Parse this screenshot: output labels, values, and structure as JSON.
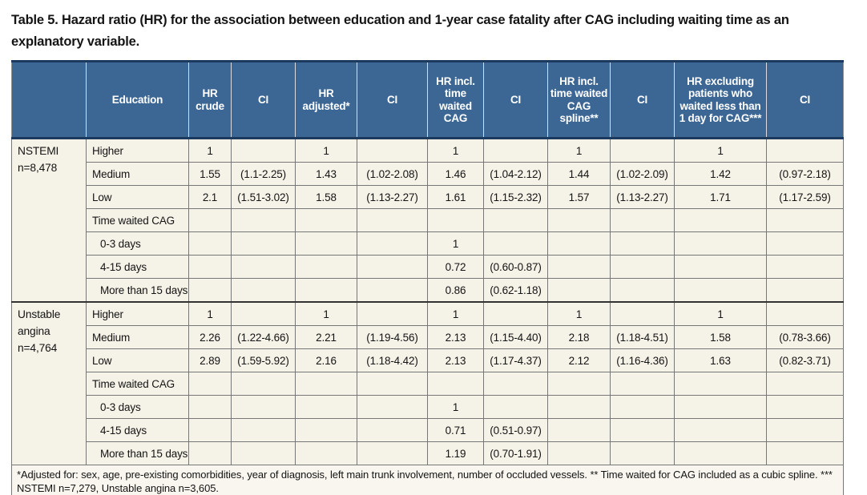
{
  "title": {
    "line1": "Table 5. Hazard ratio (HR) for the association between education and 1-year case fatality after CAG including waiting time as an",
    "line2": "explanatory variable."
  },
  "colors": {
    "header_bg": "#3c6795",
    "header_text": "#ffffff",
    "body_bg": "#f5f2e7",
    "top_border_navy": "#1b3a5e",
    "grid_gray": "#777777"
  },
  "table": {
    "columns": [
      "",
      "Education",
      "HR crude",
      "CI",
      "HR adjusted*",
      "CI",
      "HR incl. time waited CAG",
      "CI",
      "HR incl. time waited CAG spline**",
      "CI",
      "HR excluding patients who waited less than 1 day for CAG***",
      "CI"
    ],
    "sections": [
      {
        "group_lines": [
          "NSTEMI",
          "n=8,478"
        ],
        "rows": [
          {
            "label": "Higher",
            "indent": false,
            "values": [
              "1",
              "",
              "1",
              "",
              "1",
              "",
              "1",
              "",
              "1",
              ""
            ]
          },
          {
            "label": "Medium",
            "indent": false,
            "values": [
              "1.55",
              "(1.1-2.25)",
              "1.43",
              "(1.02-2.08)",
              "1.46",
              "(1.04-2.12)",
              "1.44",
              "(1.02-2.09)",
              "1.42",
              "(0.97-2.18)"
            ]
          },
          {
            "label": "Low",
            "indent": false,
            "values": [
              "2.1",
              "(1.51-3.02)",
              "1.58",
              "(1.13-2.27)",
              "1.61",
              "(1.15-2.32)",
              "1.57",
              "(1.13-2.27)",
              "1.71",
              "(1.17-2.59)"
            ]
          },
          {
            "label": "Time waited CAG",
            "indent": false,
            "values": [
              "",
              "",
              "",
              "",
              "",
              "",
              "",
              "",
              "",
              ""
            ]
          },
          {
            "label": "0-3 days",
            "indent": true,
            "values": [
              "",
              "",
              "",
              "",
              "1",
              "",
              "",
              "",
              "",
              ""
            ]
          },
          {
            "label": "4-15 days",
            "indent": true,
            "values": [
              "",
              "",
              "",
              "",
              "0.72",
              "(0.60-0.87)",
              "",
              "",
              "",
              ""
            ]
          },
          {
            "label": "More than 15 days",
            "indent": true,
            "values": [
              "",
              "",
              "",
              "",
              "0.86",
              "(0.62-1.18)",
              "",
              "",
              "",
              ""
            ]
          }
        ]
      },
      {
        "group_lines": [
          "Unstable",
          "angina",
          "n=4,764"
        ],
        "rows": [
          {
            "label": "Higher",
            "indent": false,
            "values": [
              "1",
              "",
              "1",
              "",
              "1",
              "",
              "1",
              "",
              "1",
              ""
            ]
          },
          {
            "label": "Medium",
            "indent": false,
            "values": [
              "2.26",
              "(1.22-4.66)",
              "2.21",
              "(1.19-4.56)",
              "2.13",
              "(1.15-4.40)",
              "2.18",
              "(1.18-4.51)",
              "1.58",
              "(0.78-3.66)"
            ]
          },
          {
            "label": "Low",
            "indent": false,
            "values": [
              "2.89",
              "(1.59-5.92)",
              "2.16",
              "(1.18-4.42)",
              "2.13",
              "(1.17-4.37)",
              "2.12",
              "(1.16-4.36)",
              "1.63",
              "(0.82-3.71)"
            ]
          },
          {
            "label": "Time waited CAG",
            "indent": false,
            "values": [
              "",
              "",
              "",
              "",
              "",
              "",
              "",
              "",
              "",
              ""
            ]
          },
          {
            "label": "0-3 days",
            "indent": true,
            "values": [
              "",
              "",
              "",
              "",
              "1",
              "",
              "",
              "",
              "",
              ""
            ]
          },
          {
            "label": "4-15 days",
            "indent": true,
            "values": [
              "",
              "",
              "",
              "",
              "0.71",
              "(0.51-0.97)",
              "",
              "",
              "",
              ""
            ]
          },
          {
            "label": "More than 15 days",
            "indent": true,
            "values": [
              "",
              "",
              "",
              "",
              "1.19",
              "(0.70-1.91)",
              "",
              "",
              "",
              ""
            ]
          }
        ]
      }
    ],
    "footnote": "*Adjusted for: sex, age, pre-existing comorbidities, year of diagnosis, left main trunk involvement, number of occluded vessels. ** Time waited for CAG included as a cubic spline. *** NSTEMI n=7,279, Unstable angina n=3,605."
  }
}
